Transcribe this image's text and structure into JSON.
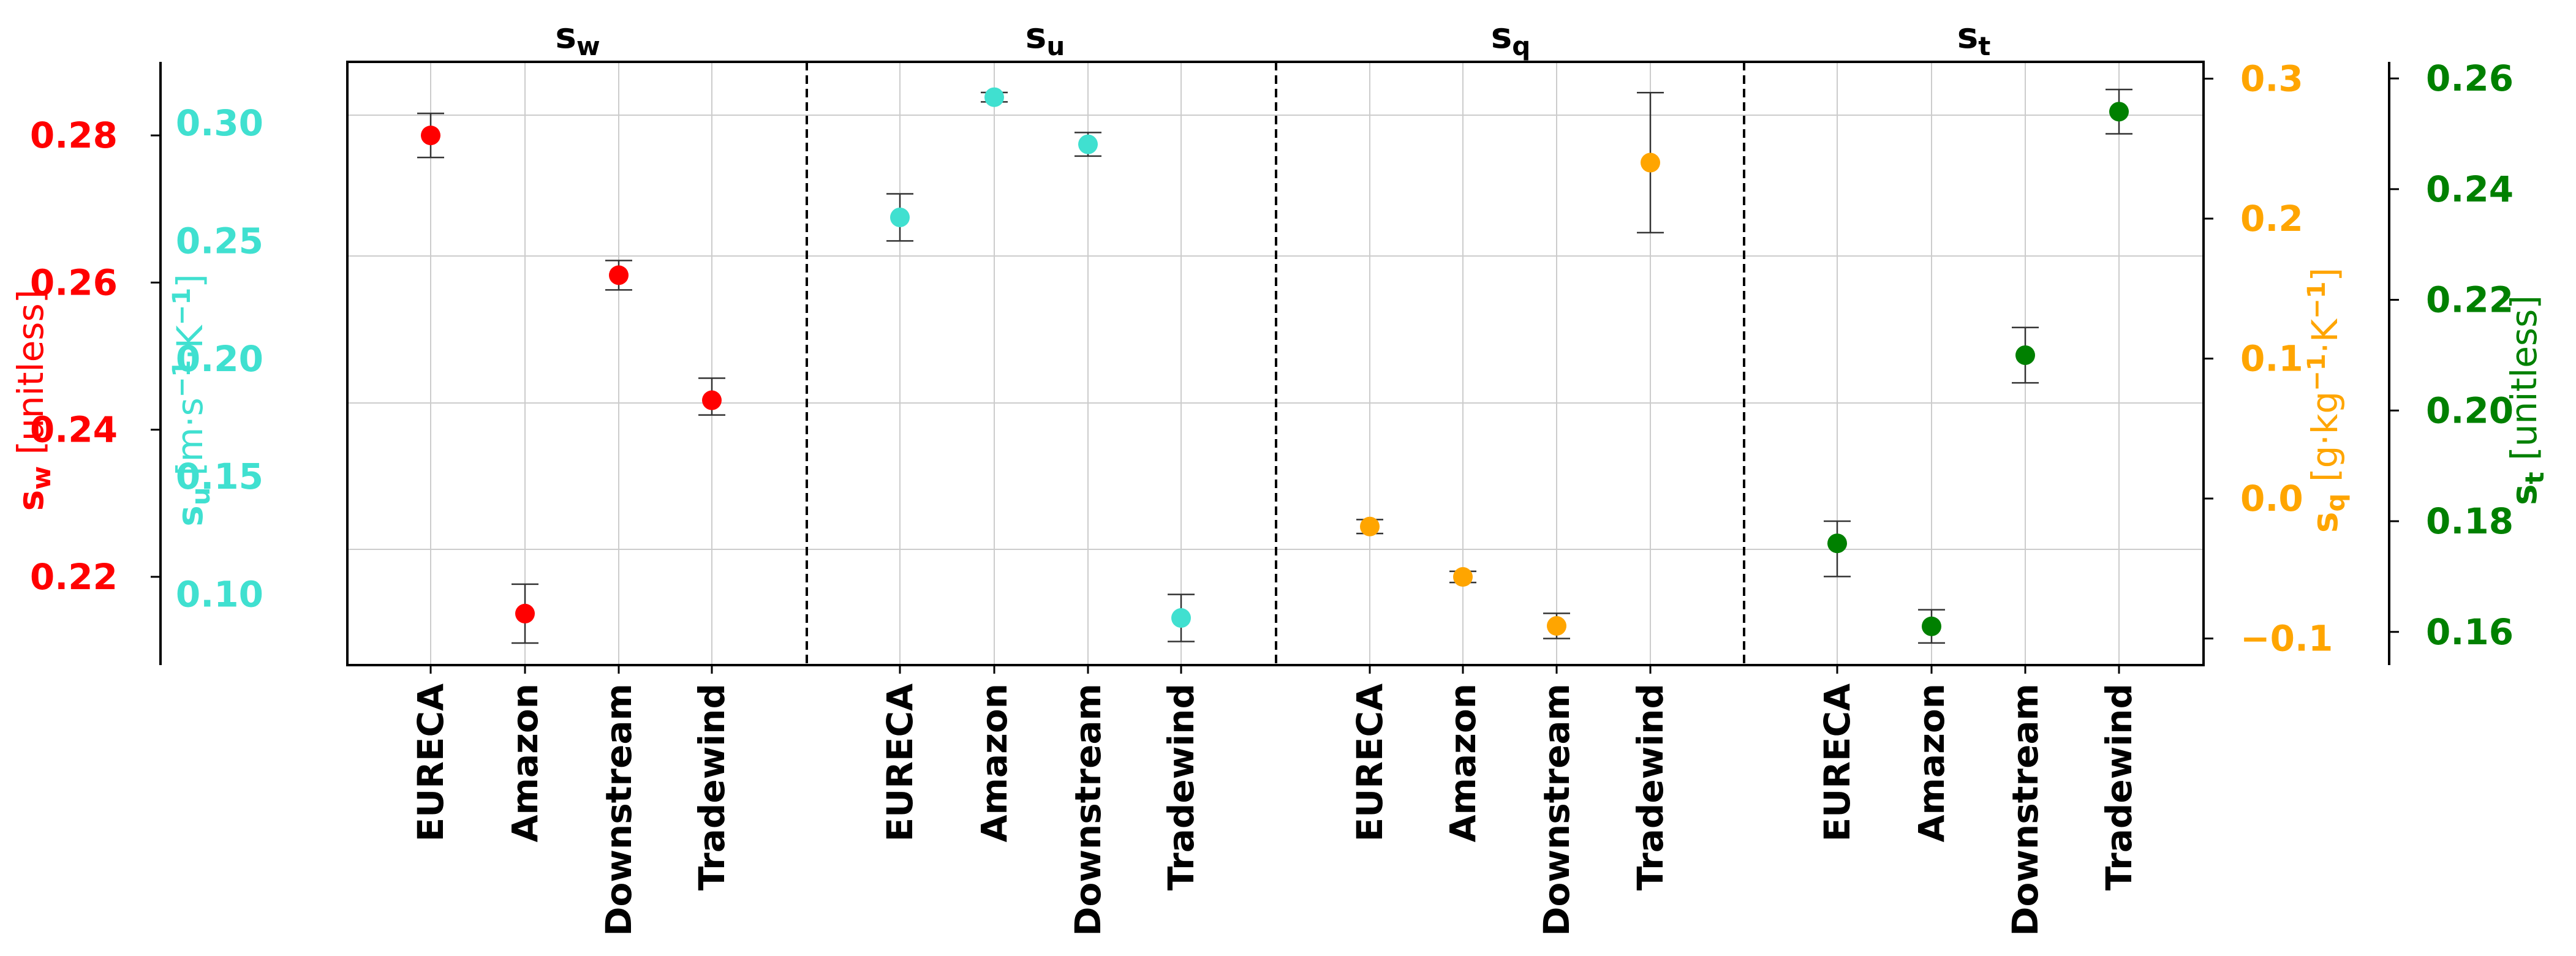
{
  "chart_data": {
    "type": "scatter",
    "categories": [
      "EURECA",
      "Amazon",
      "Downstream",
      "Tradewind"
    ],
    "panels": [
      {
        "id": "sw",
        "title_main": "s",
        "title_sub": "w",
        "color": "#ff0000",
        "axis_label_main": "s",
        "axis_label_sub": "w",
        "axis_label_unit": " [unitless]",
        "ylim": [
          0.208,
          0.29
        ],
        "ticks": [
          "0.22",
          "0.24",
          "0.26",
          "0.28"
        ],
        "points": [
          {
            "category": "EURECA",
            "value": 0.28,
            "lower": 0.277,
            "upper": 0.283
          },
          {
            "category": "Amazon",
            "value": 0.215,
            "lower": 0.211,
            "upper": 0.219
          },
          {
            "category": "Downstream",
            "value": 0.261,
            "lower": 0.259,
            "upper": 0.263
          },
          {
            "category": "Tradewind",
            "value": 0.244,
            "lower": 0.242,
            "upper": 0.247
          }
        ]
      },
      {
        "id": "su",
        "title_main": "s",
        "title_sub": "u",
        "color": "#40e0d0",
        "axis_label_main": "s",
        "axis_label_sub": "u",
        "axis_label_unit_pre": " [m·s",
        "axis_label_unit_mid": "·K",
        "axis_label_unit_post": "]",
        "axis_label_exp": "−1",
        "ylim": [
          0.07,
          0.326
        ],
        "ticks": [
          "0.10",
          "0.15",
          "0.20",
          "0.25",
          "0.30"
        ],
        "points": [
          {
            "category": "EURECA",
            "value": 0.26,
            "lower": 0.25,
            "upper": 0.27
          },
          {
            "category": "Amazon",
            "value": 0.311,
            "lower": 0.309,
            "upper": 0.313
          },
          {
            "category": "Downstream",
            "value": 0.291,
            "lower": 0.286,
            "upper": 0.296
          },
          {
            "category": "Tradewind",
            "value": 0.09,
            "lower": 0.08,
            "upper": 0.1
          }
        ]
      },
      {
        "id": "sq",
        "title_main": "s",
        "title_sub": "q",
        "color": "#ffa500",
        "axis_label_main": "s",
        "axis_label_sub": "q",
        "axis_label_unit_pre": " [g·kg",
        "axis_label_unit_mid": "·K",
        "axis_label_unit_post": "]",
        "axis_label_exp": "−1",
        "ylim": [
          -0.119,
          0.312
        ],
        "ticks": [
          "−0.1",
          "0.0",
          "0.1",
          "0.2",
          "0.3"
        ],
        "points": [
          {
            "category": "EURECA",
            "value": -0.02,
            "lower": -0.025,
            "upper": -0.015
          },
          {
            "category": "Amazon",
            "value": -0.056,
            "lower": -0.06,
            "upper": -0.052
          },
          {
            "category": "Downstream",
            "value": -0.091,
            "lower": -0.1,
            "upper": -0.082
          },
          {
            "category": "Tradewind",
            "value": 0.24,
            "lower": 0.19,
            "upper": 0.29
          }
        ]
      },
      {
        "id": "st",
        "title_main": "s",
        "title_sub": "t",
        "color": "#008000",
        "axis_label_main": "s",
        "axis_label_sub": "t",
        "axis_label_unit": " [unitless]",
        "ylim": [
          0.154,
          0.263
        ],
        "ticks": [
          "0.16",
          "0.18",
          "0.20",
          "0.22",
          "0.24",
          "0.26"
        ],
        "points": [
          {
            "category": "EURECA",
            "value": 0.176,
            "lower": 0.17,
            "upper": 0.18
          },
          {
            "category": "Amazon",
            "value": 0.161,
            "lower": 0.158,
            "upper": 0.164
          },
          {
            "category": "Downstream",
            "value": 0.21,
            "lower": 0.205,
            "upper": 0.215
          },
          {
            "category": "Tradewind",
            "value": 0.254,
            "lower": 0.25,
            "upper": 0.258
          }
        ]
      }
    ],
    "gridlines": "on",
    "panel_separators": "dashed"
  }
}
